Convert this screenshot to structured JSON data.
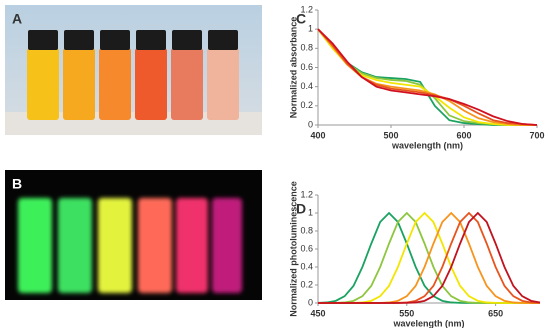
{
  "panel_labels": [
    "A",
    "B",
    "C",
    "D"
  ],
  "chart_data": [
    {
      "type": "line",
      "xlabel": "wavelength (nm)",
      "ylabel": "Normalized absorbance",
      "x": [
        400,
        420,
        440,
        460,
        480,
        500,
        520,
        540,
        560,
        580,
        600,
        620,
        640,
        660,
        680,
        700
      ],
      "xlim": [
        400,
        700
      ],
      "xticks": [
        400,
        500,
        600,
        700
      ],
      "ylim": [
        0,
        1.2
      ],
      "yticks": [
        0,
        0.2,
        0.4,
        0.6,
        0.8,
        1,
        1.2
      ],
      "series": [
        {
          "color": "#1aa260",
          "values": [
            1,
            0.82,
            0.65,
            0.55,
            0.5,
            0.49,
            0.48,
            0.45,
            0.2,
            0.05,
            0.02,
            0.01,
            0,
            0,
            0,
            0
          ]
        },
        {
          "color": "#8dc63f",
          "values": [
            1,
            0.8,
            0.64,
            0.54,
            0.49,
            0.47,
            0.46,
            0.42,
            0.28,
            0.1,
            0.04,
            0.02,
            0.01,
            0,
            0,
            0
          ]
        },
        {
          "color": "#f2e600",
          "values": [
            1,
            0.8,
            0.63,
            0.52,
            0.47,
            0.44,
            0.42,
            0.4,
            0.3,
            0.18,
            0.08,
            0.03,
            0.01,
            0,
            0,
            0
          ]
        },
        {
          "color": "#f7941d",
          "values": [
            1,
            0.82,
            0.63,
            0.5,
            0.43,
            0.4,
            0.38,
            0.36,
            0.32,
            0.25,
            0.15,
            0.07,
            0.03,
            0.01,
            0,
            0
          ]
        },
        {
          "color": "#e8541e",
          "values": [
            1,
            0.83,
            0.64,
            0.5,
            0.42,
            0.38,
            0.36,
            0.34,
            0.31,
            0.27,
            0.2,
            0.12,
            0.05,
            0.02,
            0.01,
            0
          ]
        },
        {
          "color": "#d01020",
          "values": [
            1,
            0.85,
            0.66,
            0.5,
            0.4,
            0.36,
            0.34,
            0.32,
            0.3,
            0.27,
            0.22,
            0.16,
            0.09,
            0.04,
            0.01,
            0
          ]
        }
      ]
    },
    {
      "type": "line",
      "xlabel": "wavelength (nm)",
      "ylabel": "Normalized photoluminescence",
      "x": [
        450,
        460,
        470,
        480,
        490,
        500,
        510,
        520,
        530,
        540,
        550,
        560,
        570,
        580,
        590,
        600,
        610,
        620,
        630,
        640,
        650,
        660,
        670,
        680,
        690,
        700
      ],
      "xlim": [
        450,
        700
      ],
      "xticks": [
        450,
        550,
        650
      ],
      "ylim": [
        0,
        1.2
      ],
      "yticks": [
        0,
        0.2,
        0.4,
        0.6,
        0.8,
        1,
        1.2
      ],
      "series": [
        {
          "color": "#1aa260",
          "values": [
            0.001,
            0.006,
            0.024,
            0.076,
            0.19,
            0.4,
            0.66,
            0.9,
            1,
            0.9,
            0.66,
            0.4,
            0.19,
            0.076,
            0.024,
            0.006,
            0.001,
            0,
            0,
            0,
            0,
            0,
            0,
            0,
            0,
            0
          ]
        },
        {
          "color": "#8dc63f",
          "values": [
            0,
            0,
            0.001,
            0.006,
            0.024,
            0.076,
            0.19,
            0.4,
            0.66,
            0.9,
            1,
            0.9,
            0.66,
            0.4,
            0.19,
            0.076,
            0.024,
            0.006,
            0.001,
            0,
            0,
            0,
            0,
            0,
            0,
            0
          ]
        },
        {
          "color": "#f2e600",
          "values": [
            0,
            0,
            0,
            0,
            0.001,
            0.006,
            0.024,
            0.076,
            0.19,
            0.4,
            0.66,
            0.9,
            1,
            0.9,
            0.66,
            0.4,
            0.19,
            0.076,
            0.024,
            0.006,
            0.001,
            0,
            0,
            0,
            0,
            0
          ]
        },
        {
          "color": "#f7941d",
          "values": [
            0,
            0,
            0,
            0,
            0,
            0,
            0,
            0.001,
            0.006,
            0.024,
            0.076,
            0.19,
            0.4,
            0.66,
            0.9,
            1,
            0.9,
            0.66,
            0.4,
            0.19,
            0.076,
            0.024,
            0.006,
            0.001,
            0,
            0
          ]
        },
        {
          "color": "#e8541e",
          "values": [
            0,
            0,
            0,
            0,
            0,
            0,
            0,
            0,
            0,
            0.001,
            0.006,
            0.024,
            0.076,
            0.19,
            0.4,
            0.66,
            0.9,
            1,
            0.9,
            0.66,
            0.4,
            0.19,
            0.076,
            0.024,
            0.006,
            0.001
          ]
        },
        {
          "color": "#c1121f",
          "values": [
            0,
            0,
            0,
            0,
            0,
            0,
            0,
            0,
            0,
            0,
            0.001,
            0.006,
            0.024,
            0.076,
            0.19,
            0.4,
            0.66,
            0.9,
            1,
            0.9,
            0.66,
            0.4,
            0.19,
            0.076,
            0.024,
            0.006
          ]
        }
      ]
    }
  ]
}
